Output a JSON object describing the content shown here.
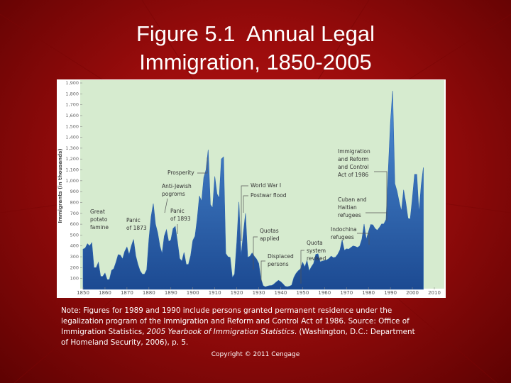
{
  "chart_data": {
    "type": "area",
    "title": "Figure 5.1  Annual Legal Immigration, 1850-2005",
    "ylabel": "Immigrants (in thousands)",
    "xlim": [
      1850,
      2010
    ],
    "xticks": [
      1850,
      1860,
      1870,
      1880,
      1890,
      1900,
      1910,
      1920,
      1930,
      1940,
      1950,
      1960,
      1970,
      1980,
      1990,
      2000,
      2010
    ],
    "ylim": [
      0,
      1900
    ],
    "yticks": [
      100,
      200,
      300,
      400,
      500,
      600,
      700,
      800,
      900,
      {
        "value": 1000,
        "label": "1,000"
      },
      {
        "value": 1100,
        "label": "1,100"
      },
      {
        "value": 1200,
        "label": "1,200"
      },
      {
        "value": 1300,
        "label": "1,300"
      },
      {
        "value": 1400,
        "label": "1,400"
      },
      {
        "value": 1500,
        "label": "1,500"
      },
      {
        "value": 1600,
        "label": "1,600"
      },
      {
        "value": 1700,
        "label": "1,700"
      },
      {
        "value": 1800,
        "label": "1,800"
      },
      {
        "value": 1900,
        "label": "1,900"
      }
    ],
    "x": [
      1850,
      1851,
      1852,
      1853,
      1854,
      1855,
      1856,
      1857,
      1858,
      1859,
      1860,
      1861,
      1862,
      1863,
      1864,
      1865,
      1866,
      1867,
      1868,
      1869,
      1870,
      1871,
      1872,
      1873,
      1874,
      1875,
      1876,
      1877,
      1878,
      1879,
      1880,
      1881,
      1882,
      1883,
      1884,
      1885,
      1886,
      1887,
      1888,
      1889,
      1890,
      1891,
      1892,
      1893,
      1894,
      1895,
      1896,
      1897,
      1898,
      1899,
      1900,
      1901,
      1902,
      1903,
      1904,
      1905,
      1906,
      1907,
      1908,
      1909,
      1910,
      1911,
      1912,
      1913,
      1914,
      1915,
      1916,
      1917,
      1918,
      1919,
      1920,
      1921,
      1922,
      1923,
      1924,
      1925,
      1926,
      1927,
      1928,
      1929,
      1930,
      1931,
      1932,
      1933,
      1934,
      1935,
      1936,
      1937,
      1938,
      1939,
      1940,
      1941,
      1942,
      1943,
      1944,
      1945,
      1946,
      1947,
      1948,
      1949,
      1950,
      1951,
      1952,
      1953,
      1954,
      1955,
      1956,
      1957,
      1958,
      1959,
      1960,
      1961,
      1962,
      1963,
      1964,
      1965,
      1966,
      1967,
      1968,
      1969,
      1970,
      1971,
      1972,
      1973,
      1974,
      1975,
      1976,
      1977,
      1978,
      1979,
      1980,
      1981,
      1982,
      1983,
      1984,
      1985,
      1986,
      1987,
      1988,
      1989,
      1990,
      1991,
      1992,
      1993,
      1994,
      1995,
      1996,
      1997,
      1998,
      1999,
      2000,
      2001,
      2002,
      2003,
      2004,
      2005
    ],
    "series": [
      {
        "name": "Immigrants",
        "color": "#2a62ae",
        "values": [
          370,
          380,
          420,
          400,
          430,
          200,
          200,
          250,
          120,
          120,
          150,
          90,
          90,
          175,
          190,
          250,
          320,
          315,
          280,
          350,
          390,
          320,
          400,
          460,
          310,
          230,
          170,
          140,
          140,
          180,
          460,
          670,
          790,
          600,
          520,
          400,
          330,
          490,
          550,
          440,
          455,
          560,
          580,
          440,
          285,
          260,
          340,
          230,
          230,
          310,
          450,
          490,
          650,
          860,
          810,
          1030,
          1100,
          1285,
          780,
          750,
          1040,
          880,
          840,
          1200,
          1220,
          330,
          300,
          295,
          110,
          140,
          430,
          805,
          310,
          520,
          700,
          295,
          305,
          335,
          305,
          280,
          240,
          100,
          35,
          23,
          30,
          35,
          36,
          50,
          68,
          83,
          71,
          52,
          29,
          24,
          29,
          38,
          109,
          147,
          171,
          188,
          249,
          206,
          266,
          170,
          208,
          238,
          322,
          327,
          253,
          261,
          265,
          271,
          284,
          306,
          292,
          297,
          323,
          362,
          454,
          359,
          373,
          370,
          385,
          400,
          395,
          386,
          399,
          462,
          601,
          460,
          531,
          597,
          594,
          560,
          544,
          570,
          602,
          602,
          643,
          1091,
          1536,
          1827,
          974,
          904,
          804,
          720,
          916,
          798,
          654,
          647,
          841,
          1059,
          1059,
          704,
          958,
          1122
        ]
      }
    ],
    "annotations": [
      [
        "Great",
        "potato",
        "famine"
      ],
      [
        "Panic",
        "of 1873"
      ],
      [
        "Anti-Jewish",
        "pogroms"
      ],
      [
        "Panic",
        "of 1893"
      ],
      [
        "Prosperity"
      ],
      [
        "World War I"
      ],
      [
        "Postwar flood"
      ],
      [
        "Quotas",
        "applied"
      ],
      [
        "Displaced",
        "persons"
      ],
      [
        "Quota",
        "system",
        "revised"
      ],
      [
        "Indochina",
        "refugees"
      ],
      [
        "Cuban and",
        "Haitian",
        "refugees"
      ],
      [
        "Immigration",
        "and Reform",
        "and Control",
        "Act of 1986"
      ]
    ],
    "note": [
      "Note: Figures for 1989 and 1990 include persons granted permanent residence under the legalization program of the Immigration and Reform and Control Act of 1986. Source: Office of Immigration Statistics, ",
      "2005 Yearbook of Immigration Statistics",
      ". (Washington, D.C.: Department of Homeland Security, 2006), p. 5."
    ],
    "copyright": "Copyright © 2011 Cengage"
  }
}
